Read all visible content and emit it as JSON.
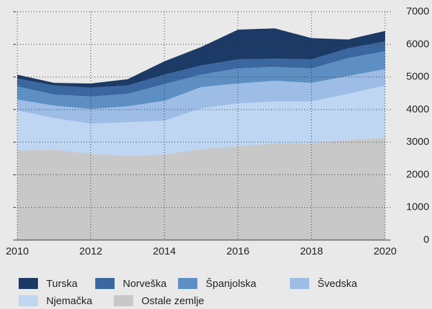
{
  "chart_data": {
    "type": "area",
    "stacked": true,
    "x": [
      2010,
      2011,
      2012,
      2013,
      2014,
      2015,
      2016,
      2017,
      2018,
      2019,
      2020
    ],
    "series": [
      {
        "name": "Turska",
        "color": "#1c3a66",
        "values": [
          120,
          80,
          130,
          190,
          410,
          570,
          910,
          930,
          650,
          270,
          320
        ]
      },
      {
        "name": "Norveška",
        "color": "#3a67a0",
        "values": [
          240,
          280,
          270,
          260,
          290,
          280,
          280,
          250,
          280,
          300,
          300
        ]
      },
      {
        "name": "Španjolska",
        "color": "#5d8fc2",
        "values": [
          400,
          340,
          380,
          380,
          510,
          380,
          460,
          430,
          440,
          550,
          550
        ]
      },
      {
        "name": "Švedska",
        "color": "#9dbde6",
        "values": [
          340,
          380,
          450,
          490,
          610,
          650,
          610,
          630,
          570,
          550,
          500
        ]
      },
      {
        "name": "Njemačka",
        "color": "#bed6f2",
        "values": [
          1220,
          970,
          930,
          1030,
          1040,
          1250,
          1310,
          1290,
          1290,
          1410,
          1610
        ]
      },
      {
        "name": "Ostale zemlje",
        "color": "#c8c8c8",
        "values": [
          2750,
          2770,
          2640,
          2580,
          2620,
          2790,
          2880,
          2960,
          2960,
          3070,
          3130
        ]
      }
    ],
    "xlim": [
      2010,
      2020
    ],
    "xticks": [
      2010,
      2012,
      2014,
      2016,
      2018,
      2020
    ],
    "ylim": [
      0,
      7000
    ],
    "yticks": [
      0,
      1000,
      2000,
      3000,
      4000,
      5000,
      6000,
      7000
    ],
    "grid": true
  }
}
